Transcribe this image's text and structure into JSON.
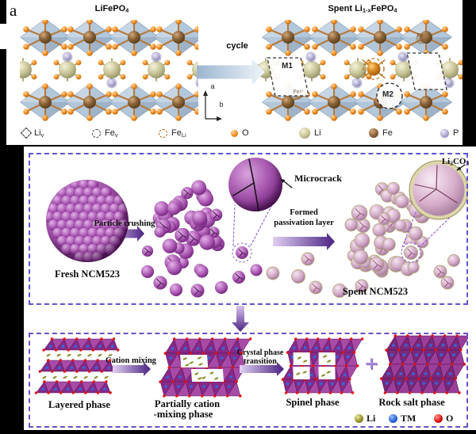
{
  "panel_label": "a",
  "top": {
    "title_left": {
      "p1": "LiFePO",
      "s1": "4"
    },
    "title_right": {
      "p1": "Spent Li",
      "s1": "1-x",
      "p2": "FePO",
      "s2": "4"
    },
    "cycle_label": "cycle",
    "axis": {
      "a_label": "a",
      "b_label": "b"
    },
    "defects": {
      "m1": "M1",
      "m2": "M2",
      "fe2_main": "Fe",
      "fe2_sup": "2+"
    },
    "legend": [
      {
        "name": "li-vacancy",
        "main": "Li",
        "sub": "v"
      },
      {
        "name": "fe-vacancy",
        "main": "Fe",
        "sub": "v"
      },
      {
        "name": "fe-on-li-antisite",
        "main": "Fe",
        "sub": "Li"
      },
      {
        "name": "oxygen",
        "main": "O",
        "sub": ""
      },
      {
        "name": "lithium",
        "main": "Li",
        "sub": ""
      },
      {
        "name": "iron",
        "main": "Fe",
        "sub": ""
      },
      {
        "name": "phosphorus",
        "main": "P",
        "sub": ""
      }
    ]
  },
  "middle": {
    "fresh_label": "Fresh NCM523",
    "crushing_label": "Particle crushing",
    "microcrack_label": "Microcrack",
    "passivation_line1": "Formed",
    "passivation_line2": "passivation layer",
    "spent_label": "Spent NCM523",
    "li2co3": {
      "p1": "Li",
      "s1": "2",
      "p2": "CO",
      "s2": "3"
    }
  },
  "bottom": {
    "layered_label": "Layered phase",
    "cation_mixing_label": "Cation mixing",
    "partial_line1": "Partially cation",
    "partial_line2": "-mixing phase",
    "transition_line1": "Crystal phase",
    "transition_line2": "transition",
    "spinel_label": "Spinel phase",
    "plus_sign": "+",
    "rocksalt_label": "Rock salt phase",
    "legend": [
      {
        "name": "lithium",
        "label": "Li",
        "color": "#9a9a3c"
      },
      {
        "name": "transition-metal",
        "label": "TM",
        "color": "#2e68e0"
      },
      {
        "name": "oxygen",
        "label": "O",
        "color": "#e41212"
      }
    ]
  },
  "colors": {
    "panel_border_blue": "#5b55d8",
    "panel_border_purple": "#6a50cc",
    "arrow_purple_dark": "#4c2282",
    "arrow_blue": "#a9c2d8",
    "fresh_particle_purple": "#9b3f9f",
    "spent_particle_pink": "#cfa8c4",
    "passivation_shell_khaki": "#c9c092",
    "polyhedra_blue": "#a9bfd5",
    "fe_atom_brown": "#8a6238",
    "li_atom_khaki": "#c8c496",
    "o_atom_orange": "#f08c20",
    "p_atom_lavender": "#aaa6ce",
    "phase_purple": "#872a87",
    "red_oxygen_dot": "#e01212",
    "blue_tm_dot": "#3566d8",
    "olive_li_dot": "#8e8e2e"
  }
}
